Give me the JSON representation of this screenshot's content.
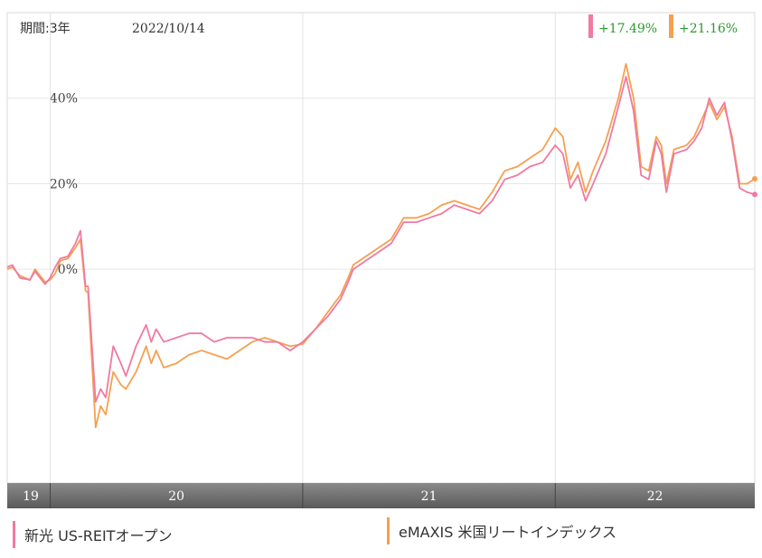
{
  "header": {
    "period_label": "期間:3年",
    "date": "2022/10/14"
  },
  "badges": [
    {
      "value": "+17.49%",
      "color": "#f07aa0"
    },
    {
      "value": "+21.16%",
      "color": "#f5a050"
    }
  ],
  "colors": {
    "series_pink": "#f07aa0",
    "series_orange": "#f5a050",
    "badge_text": "#2e9a2e",
    "axis_band": "#6e6e6e"
  },
  "chart_data": {
    "type": "line",
    "y_unit": "%",
    "ylim": [
      -50,
      60
    ],
    "y_ticks": [
      {
        "value": 40,
        "label": "40%"
      },
      {
        "value": 20,
        "label": "20%"
      },
      {
        "value": 0,
        "label": "0%"
      }
    ],
    "x_range": [
      2019.83,
      2022.79
    ],
    "x_ticks": [
      {
        "value": 2019.83,
        "label": "19"
      },
      {
        "value": 2020.0,
        "label": "20"
      },
      {
        "value": 2021.0,
        "label": "21"
      },
      {
        "value": 2022.0,
        "label": "22"
      }
    ],
    "gridlines": true,
    "series": [
      {
        "name": "新光 US-REITオープン",
        "color": "#f07aa0",
        "points": [
          [
            2019.83,
            0.5
          ],
          [
            2019.85,
            1.0
          ],
          [
            2019.88,
            -2.0
          ],
          [
            2019.92,
            -2.5
          ],
          [
            2019.94,
            -0.5
          ],
          [
            2019.98,
            -3.5
          ],
          [
            2020.0,
            -2.0
          ],
          [
            2020.02,
            0.5
          ],
          [
            2020.04,
            2.5
          ],
          [
            2020.07,
            3.0
          ],
          [
            2020.1,
            6.0
          ],
          [
            2020.12,
            9.0
          ],
          [
            2020.14,
            -4.0
          ],
          [
            2020.15,
            -4.0
          ],
          [
            2020.18,
            -31.0
          ],
          [
            2020.2,
            -28.0
          ],
          [
            2020.22,
            -30.0
          ],
          [
            2020.25,
            -18.0
          ],
          [
            2020.28,
            -22.0
          ],
          [
            2020.3,
            -25.0
          ],
          [
            2020.34,
            -18.0
          ],
          [
            2020.38,
            -13.0
          ],
          [
            2020.4,
            -17.0
          ],
          [
            2020.42,
            -14.0
          ],
          [
            2020.45,
            -17.0
          ],
          [
            2020.5,
            -16.0
          ],
          [
            2020.55,
            -15.0
          ],
          [
            2020.6,
            -15.0
          ],
          [
            2020.65,
            -17.0
          ],
          [
            2020.7,
            -16.0
          ],
          [
            2020.75,
            -16.0
          ],
          [
            2020.8,
            -16.0
          ],
          [
            2020.85,
            -17.0
          ],
          [
            2020.9,
            -17.0
          ],
          [
            2020.95,
            -19.0
          ],
          [
            2021.0,
            -17.0
          ],
          [
            2021.05,
            -14.0
          ],
          [
            2021.1,
            -11.0
          ],
          [
            2021.15,
            -7.0
          ],
          [
            2021.18,
            -3.0
          ],
          [
            2021.2,
            0.0
          ],
          [
            2021.25,
            2.0
          ],
          [
            2021.3,
            4.0
          ],
          [
            2021.35,
            6.0
          ],
          [
            2021.4,
            11.0
          ],
          [
            2021.45,
            11.0
          ],
          [
            2021.5,
            12.0
          ],
          [
            2021.55,
            13.0
          ],
          [
            2021.6,
            15.0
          ],
          [
            2021.65,
            14.0
          ],
          [
            2021.7,
            13.0
          ],
          [
            2021.75,
            16.0
          ],
          [
            2021.8,
            21.0
          ],
          [
            2021.85,
            22.0
          ],
          [
            2021.9,
            24.0
          ],
          [
            2021.95,
            25.0
          ],
          [
            2022.0,
            29.0
          ],
          [
            2022.03,
            27.0
          ],
          [
            2022.06,
            19.0
          ],
          [
            2022.09,
            22.0
          ],
          [
            2022.12,
            16.0
          ],
          [
            2022.15,
            20.0
          ],
          [
            2022.2,
            27.0
          ],
          [
            2022.25,
            38.0
          ],
          [
            2022.28,
            45.0
          ],
          [
            2022.31,
            37.0
          ],
          [
            2022.34,
            22.0
          ],
          [
            2022.37,
            21.0
          ],
          [
            2022.4,
            30.0
          ],
          [
            2022.42,
            27.0
          ],
          [
            2022.44,
            18.0
          ],
          [
            2022.47,
            27.0
          ],
          [
            2022.52,
            28.0
          ],
          [
            2022.55,
            30.0
          ],
          [
            2022.58,
            33.0
          ],
          [
            2022.61,
            40.0
          ],
          [
            2022.64,
            36.0
          ],
          [
            2022.67,
            39.0
          ],
          [
            2022.7,
            30.0
          ],
          [
            2022.73,
            19.0
          ],
          [
            2022.76,
            18.0
          ],
          [
            2022.79,
            17.49
          ]
        ]
      },
      {
        "name": "eMAXIS 米国リートインデックス",
        "color": "#f5a050",
        "points": [
          [
            2019.83,
            0.0
          ],
          [
            2019.85,
            0.5
          ],
          [
            2019.88,
            -1.5
          ],
          [
            2019.92,
            -2.5
          ],
          [
            2019.94,
            0.0
          ],
          [
            2019.98,
            -3.0
          ],
          [
            2020.0,
            -2.5
          ],
          [
            2020.02,
            -1.0
          ],
          [
            2020.04,
            2.0
          ],
          [
            2020.07,
            2.5
          ],
          [
            2020.1,
            5.0
          ],
          [
            2020.12,
            7.0
          ],
          [
            2020.14,
            -5.0
          ],
          [
            2020.15,
            -5.5
          ],
          [
            2020.18,
            -37.0
          ],
          [
            2020.2,
            -32.0
          ],
          [
            2020.22,
            -34.0
          ],
          [
            2020.25,
            -24.0
          ],
          [
            2020.28,
            -27.0
          ],
          [
            2020.3,
            -28.0
          ],
          [
            2020.34,
            -24.0
          ],
          [
            2020.38,
            -18.0
          ],
          [
            2020.4,
            -22.0
          ],
          [
            2020.42,
            -19.0
          ],
          [
            2020.45,
            -23.0
          ],
          [
            2020.5,
            -22.0
          ],
          [
            2020.55,
            -20.0
          ],
          [
            2020.6,
            -19.0
          ],
          [
            2020.65,
            -20.0
          ],
          [
            2020.7,
            -21.0
          ],
          [
            2020.75,
            -19.0
          ],
          [
            2020.8,
            -17.0
          ],
          [
            2020.85,
            -16.0
          ],
          [
            2020.9,
            -17.0
          ],
          [
            2020.95,
            -18.0
          ],
          [
            2021.0,
            -17.5
          ],
          [
            2021.05,
            -14.0
          ],
          [
            2021.1,
            -10.0
          ],
          [
            2021.15,
            -6.0
          ],
          [
            2021.18,
            -2.0
          ],
          [
            2021.2,
            1.0
          ],
          [
            2021.25,
            3.0
          ],
          [
            2021.3,
            5.0
          ],
          [
            2021.35,
            7.0
          ],
          [
            2021.4,
            12.0
          ],
          [
            2021.45,
            12.0
          ],
          [
            2021.5,
            13.0
          ],
          [
            2021.55,
            15.0
          ],
          [
            2021.6,
            16.0
          ],
          [
            2021.65,
            15.0
          ],
          [
            2021.7,
            14.0
          ],
          [
            2021.75,
            18.0
          ],
          [
            2021.8,
            23.0
          ],
          [
            2021.85,
            24.0
          ],
          [
            2021.9,
            26.0
          ],
          [
            2021.95,
            28.0
          ],
          [
            2022.0,
            33.0
          ],
          [
            2022.03,
            31.0
          ],
          [
            2022.06,
            21.0
          ],
          [
            2022.09,
            25.0
          ],
          [
            2022.12,
            18.0
          ],
          [
            2022.15,
            23.0
          ],
          [
            2022.2,
            30.0
          ],
          [
            2022.25,
            40.0
          ],
          [
            2022.28,
            48.0
          ],
          [
            2022.31,
            40.0
          ],
          [
            2022.34,
            24.0
          ],
          [
            2022.37,
            23.0
          ],
          [
            2022.4,
            31.0
          ],
          [
            2022.42,
            29.0
          ],
          [
            2022.44,
            20.0
          ],
          [
            2022.47,
            28.0
          ],
          [
            2022.52,
            29.0
          ],
          [
            2022.55,
            31.0
          ],
          [
            2022.58,
            35.0
          ],
          [
            2022.61,
            39.0
          ],
          [
            2022.64,
            35.0
          ],
          [
            2022.67,
            38.0
          ],
          [
            2022.7,
            31.0
          ],
          [
            2022.73,
            20.0
          ],
          [
            2022.76,
            20.0
          ],
          [
            2022.79,
            21.16
          ]
        ]
      }
    ]
  },
  "legend": [
    {
      "label": "新光 US-REITオープン",
      "color": "#f07aa0"
    },
    {
      "label": "eMAXIS 米国リートインデックス",
      "color": "#f5a050"
    }
  ]
}
